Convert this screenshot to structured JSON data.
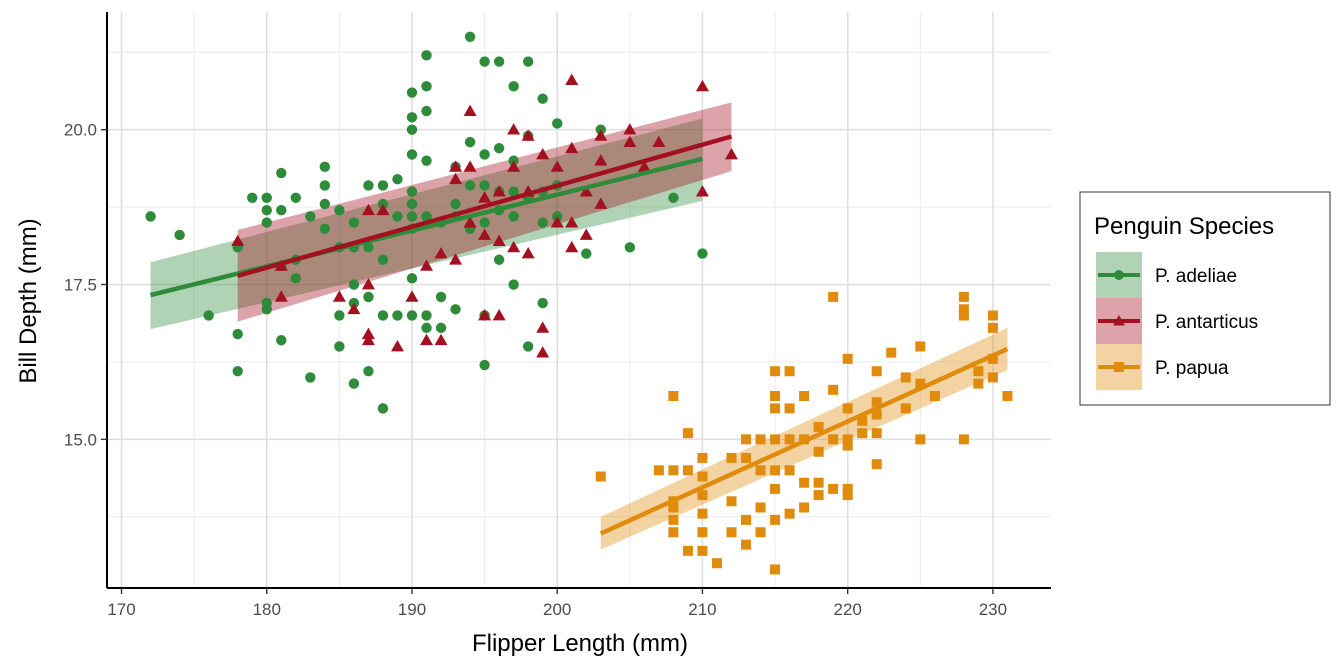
{
  "chart_data": {
    "type": "scatter",
    "xlabel": "Flipper Length (mm)",
    "ylabel": "Bill Depth (mm)",
    "xlim": [
      169,
      234
    ],
    "ylim": [
      12.6,
      21.9
    ],
    "x_ticks": [
      170,
      180,
      190,
      200,
      210,
      220,
      230
    ],
    "x_tick_labels": [
      "170",
      "180",
      "190",
      "200",
      "210",
      "220",
      "230"
    ],
    "y_ticks": [
      15.0,
      17.5,
      20.0
    ],
    "y_tick_labels": [
      "15.0",
      "17.5",
      "20.0"
    ],
    "grid": true,
    "legend": {
      "title": "Penguin Species",
      "position": "right"
    },
    "series": [
      {
        "name": "P. adeliae",
        "marker": "circle",
        "color": "#2E8B3A",
        "band_color": "#A9D1AE",
        "fit": {
          "x_start": 172,
          "x_end": 210,
          "y_start": 17.33,
          "y_end": 19.53
        },
        "band": {
          "lower_start": 16.78,
          "upper_start": 17.86,
          "lower_end": 18.85,
          "upper_end": 20.18
        },
        "points": [
          [
            172,
            18.6
          ],
          [
            174,
            18.3
          ],
          [
            176,
            17.0
          ],
          [
            178,
            18.1
          ],
          [
            178,
            16.7
          ],
          [
            178,
            16.1
          ],
          [
            179,
            18.9
          ],
          [
            180,
            18.9
          ],
          [
            180,
            18.7
          ],
          [
            180,
            18.5
          ],
          [
            180,
            17.2
          ],
          [
            180,
            17.1
          ],
          [
            181,
            19.3
          ],
          [
            181,
            18.7
          ],
          [
            181,
            17.8
          ],
          [
            181,
            16.6
          ],
          [
            182,
            18.9
          ],
          [
            182,
            17.9
          ],
          [
            182,
            17.6
          ],
          [
            183,
            18.6
          ],
          [
            183,
            16.0
          ],
          [
            184,
            19.4
          ],
          [
            184,
            19.1
          ],
          [
            184,
            18.8
          ],
          [
            184,
            18.4
          ],
          [
            185,
            18.7
          ],
          [
            185,
            18.1
          ],
          [
            185,
            17.0
          ],
          [
            185,
            16.5
          ],
          [
            186,
            18.5
          ],
          [
            186,
            18.1
          ],
          [
            186,
            17.5
          ],
          [
            186,
            17.2
          ],
          [
            186,
            15.9
          ],
          [
            187,
            19.1
          ],
          [
            187,
            18.1
          ],
          [
            187,
            17.3
          ],
          [
            187,
            16.1
          ],
          [
            188,
            19.1
          ],
          [
            188,
            18.8
          ],
          [
            188,
            17.9
          ],
          [
            188,
            17.0
          ],
          [
            188,
            15.5
          ],
          [
            189,
            19.2
          ],
          [
            189,
            18.6
          ],
          [
            189,
            17.0
          ],
          [
            190,
            20.6
          ],
          [
            190,
            20.2
          ],
          [
            190,
            20.0
          ],
          [
            190,
            19.6
          ],
          [
            190,
            19.0
          ],
          [
            190,
            18.8
          ],
          [
            190,
            18.6
          ],
          [
            190,
            18.4
          ],
          [
            190,
            17.6
          ],
          [
            190,
            17.0
          ],
          [
            191,
            21.2
          ],
          [
            191,
            20.7
          ],
          [
            191,
            20.3
          ],
          [
            191,
            19.5
          ],
          [
            191,
            18.6
          ],
          [
            191,
            17.0
          ],
          [
            191,
            16.8
          ],
          [
            192,
            18.5
          ],
          [
            192,
            17.3
          ],
          [
            192,
            16.8
          ],
          [
            193,
            19.4
          ],
          [
            193,
            18.8
          ],
          [
            193,
            18.6
          ],
          [
            193,
            17.1
          ],
          [
            194,
            21.5
          ],
          [
            194,
            19.8
          ],
          [
            194,
            19.1
          ],
          [
            194,
            18.4
          ],
          [
            195,
            21.1
          ],
          [
            195,
            19.6
          ],
          [
            195,
            19.1
          ],
          [
            195,
            18.5
          ],
          [
            195,
            17.0
          ],
          [
            195,
            16.2
          ],
          [
            196,
            21.1
          ],
          [
            196,
            19.7
          ],
          [
            196,
            19.0
          ],
          [
            196,
            18.7
          ],
          [
            196,
            17.9
          ],
          [
            197,
            20.7
          ],
          [
            197,
            19.5
          ],
          [
            197,
            19.0
          ],
          [
            197,
            18.6
          ],
          [
            197,
            17.5
          ],
          [
            198,
            21.1
          ],
          [
            198,
            19.9
          ],
          [
            198,
            18.9
          ],
          [
            198,
            16.5
          ],
          [
            199,
            20.5
          ],
          [
            199,
            19.0
          ],
          [
            199,
            18.5
          ],
          [
            199,
            17.2
          ],
          [
            200,
            20.1
          ],
          [
            200,
            19.1
          ],
          [
            200,
            18.6
          ],
          [
            202,
            18.0
          ],
          [
            203,
            20.0
          ],
          [
            205,
            18.1
          ],
          [
            208,
            18.9
          ],
          [
            210,
            18.0
          ]
        ]
      },
      {
        "name": "P. antarticus",
        "marker": "triangle",
        "color": "#A3101F",
        "band_color": "#DCA0A7",
        "fit": {
          "x_start": 178,
          "x_end": 212,
          "y_start": 17.64,
          "y_end": 19.89
        },
        "band": {
          "lower_start": 16.9,
          "upper_start": 18.38,
          "lower_end": 19.33,
          "upper_end": 20.44
        },
        "points": [
          [
            178,
            18.2
          ],
          [
            181,
            17.3
          ],
          [
            181,
            17.8
          ],
          [
            185,
            17.3
          ],
          [
            186,
            17.1
          ],
          [
            187,
            18.7
          ],
          [
            187,
            17.5
          ],
          [
            187,
            16.7
          ],
          [
            187,
            16.6
          ],
          [
            188,
            18.7
          ],
          [
            189,
            16.5
          ],
          [
            190,
            17.3
          ],
          [
            191,
            17.8
          ],
          [
            191,
            16.6
          ],
          [
            192,
            18.0
          ],
          [
            192,
            16.6
          ],
          [
            193,
            19.4
          ],
          [
            193,
            19.2
          ],
          [
            193,
            17.9
          ],
          [
            194,
            20.3
          ],
          [
            194,
            19.4
          ],
          [
            194,
            18.5
          ],
          [
            195,
            18.9
          ],
          [
            195,
            18.3
          ],
          [
            195,
            17.0
          ],
          [
            196,
            19.0
          ],
          [
            196,
            18.2
          ],
          [
            196,
            17.0
          ],
          [
            197,
            20.0
          ],
          [
            197,
            19.4
          ],
          [
            197,
            18.1
          ],
          [
            198,
            19.9
          ],
          [
            198,
            19.0
          ],
          [
            198,
            18.0
          ],
          [
            199,
            19.6
          ],
          [
            199,
            16.8
          ],
          [
            199,
            16.4
          ],
          [
            200,
            19.4
          ],
          [
            200,
            18.5
          ],
          [
            201,
            20.8
          ],
          [
            201,
            19.7
          ],
          [
            201,
            18.5
          ],
          [
            201,
            18.1
          ],
          [
            202,
            19.0
          ],
          [
            202,
            18.3
          ],
          [
            203,
            19.9
          ],
          [
            203,
            19.5
          ],
          [
            203,
            18.8
          ],
          [
            205,
            20.0
          ],
          [
            205,
            19.8
          ],
          [
            206,
            19.4
          ],
          [
            207,
            19.8
          ],
          [
            210,
            20.7
          ],
          [
            210,
            19.0
          ],
          [
            212,
            19.6
          ]
        ]
      },
      {
        "name": "P. papua",
        "marker": "square",
        "color": "#E08B0B",
        "band_color": "#F1CD99",
        "fit": {
          "x_start": 203,
          "x_end": 231,
          "y_start": 13.48,
          "y_end": 16.46
        },
        "band": {
          "lower_start": 13.22,
          "upper_start": 13.75,
          "lower_end": 16.12,
          "upper_end": 16.8
        },
        "points": [
          [
            203,
            14.4
          ],
          [
            207,
            14.5
          ],
          [
            208,
            15.7
          ],
          [
            208,
            14.5
          ],
          [
            208,
            14.0
          ],
          [
            208,
            13.9
          ],
          [
            208,
            13.7
          ],
          [
            208,
            13.5
          ],
          [
            209,
            15.1
          ],
          [
            209,
            14.5
          ],
          [
            209,
            13.2
          ],
          [
            210,
            14.7
          ],
          [
            210,
            14.4
          ],
          [
            210,
            14.1
          ],
          [
            210,
            13.8
          ],
          [
            210,
            13.5
          ],
          [
            210,
            13.2
          ],
          [
            211,
            13.0
          ],
          [
            212,
            14.7
          ],
          [
            212,
            14.0
          ],
          [
            212,
            13.5
          ],
          [
            213,
            15.0
          ],
          [
            213,
            14.7
          ],
          [
            213,
            13.7
          ],
          [
            213,
            13.3
          ],
          [
            214,
            15.0
          ],
          [
            214,
            14.5
          ],
          [
            214,
            13.9
          ],
          [
            214,
            13.5
          ],
          [
            215,
            16.1
          ],
          [
            215,
            15.7
          ],
          [
            215,
            15.5
          ],
          [
            215,
            15.0
          ],
          [
            215,
            14.5
          ],
          [
            215,
            14.2
          ],
          [
            215,
            13.7
          ],
          [
            215,
            12.9
          ],
          [
            216,
            16.1
          ],
          [
            216,
            15.5
          ],
          [
            216,
            15.0
          ],
          [
            216,
            14.5
          ],
          [
            216,
            13.8
          ],
          [
            217,
            15.7
          ],
          [
            217,
            15.0
          ],
          [
            217,
            14.3
          ],
          [
            217,
            13.9
          ],
          [
            218,
            15.2
          ],
          [
            218,
            14.8
          ],
          [
            218,
            14.3
          ],
          [
            218,
            14.1
          ],
          [
            219,
            17.3
          ],
          [
            219,
            15.8
          ],
          [
            219,
            15.0
          ],
          [
            219,
            14.2
          ],
          [
            220,
            16.3
          ],
          [
            220,
            15.5
          ],
          [
            220,
            15.0
          ],
          [
            220,
            14.9
          ],
          [
            220,
            14.2
          ],
          [
            220,
            14.1
          ],
          [
            221,
            15.3
          ],
          [
            221,
            15.1
          ],
          [
            222,
            16.1
          ],
          [
            222,
            15.6
          ],
          [
            222,
            15.4
          ],
          [
            222,
            15.1
          ],
          [
            222,
            14.6
          ],
          [
            223,
            16.4
          ],
          [
            224,
            16.0
          ],
          [
            224,
            15.5
          ],
          [
            225,
            16.5
          ],
          [
            225,
            15.9
          ],
          [
            225,
            15.0
          ],
          [
            226,
            15.7
          ],
          [
            228,
            17.3
          ],
          [
            228,
            17.1
          ],
          [
            228,
            17.0
          ],
          [
            228,
            15.0
          ],
          [
            229,
            16.1
          ],
          [
            229,
            15.9
          ],
          [
            230,
            17.0
          ],
          [
            230,
            16.8
          ],
          [
            230,
            16.3
          ],
          [
            230,
            16.0
          ],
          [
            231,
            15.7
          ]
        ]
      }
    ]
  }
}
